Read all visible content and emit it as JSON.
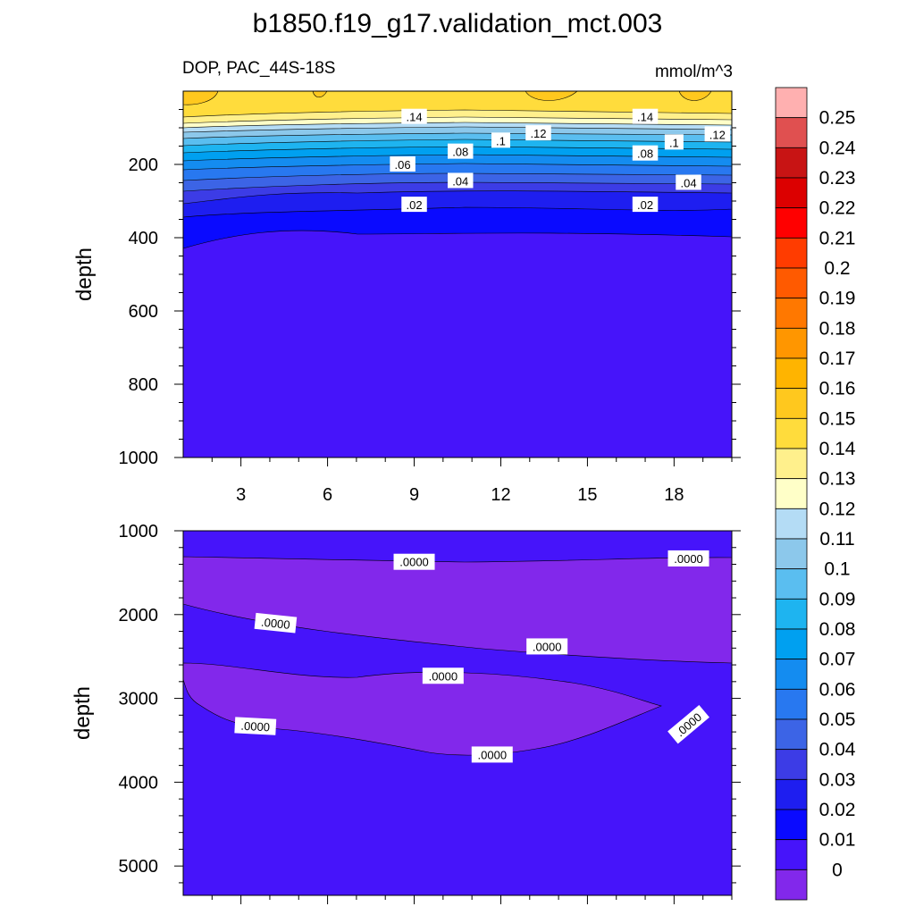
{
  "chart_data": {
    "type": "heatmap",
    "title": "b1850.f19_g17.validation_mct.003",
    "left_string": "DOP, PAC_44S-18S",
    "right_string": "mmol/m^3",
    "panels": [
      {
        "name": "upper",
        "ylabel": "depth",
        "ylim": [
          1000,
          0
        ],
        "xlim": [
          1,
          20
        ],
        "y_ticks": [
          "200",
          "400",
          "600",
          "800",
          "1000"
        ],
        "y_tick_values": [
          200,
          400,
          600,
          800,
          1000
        ],
        "x_ticks": [
          "3",
          "6",
          "9",
          "12",
          "15",
          "18"
        ],
        "x_tick_values": [
          3,
          6,
          9,
          12,
          15,
          18
        ],
        "contour_labels": [
          {
            "text": ".14",
            "x": 9.0,
            "y": 70
          },
          {
            "text": ".14",
            "x": 17.0,
            "y": 70
          },
          {
            "text": ".12",
            "x": 13.3,
            "y": 115
          },
          {
            "text": ".12",
            "x": 19.5,
            "y": 118
          },
          {
            "text": ".1",
            "x": 12.0,
            "y": 135
          },
          {
            "text": ".1",
            "x": 18.0,
            "y": 140
          },
          {
            "text": ".08",
            "x": 10.6,
            "y": 165
          },
          {
            "text": ".08",
            "x": 17.0,
            "y": 170
          },
          {
            "text": ".06",
            "x": 8.6,
            "y": 200
          },
          {
            "text": ".04",
            "x": 10.6,
            "y": 245
          },
          {
            "text": ".04",
            "x": 18.5,
            "y": 250
          },
          {
            "text": ".02",
            "x": 9.0,
            "y": 310
          },
          {
            "text": ".02",
            "x": 17.0,
            "y": 310
          }
        ]
      },
      {
        "name": "lower",
        "ylabel": "depth",
        "ylim": [
          5350,
          1000
        ],
        "xlim": [
          1,
          20
        ],
        "y_ticks": [
          "1000",
          "2000",
          "3000",
          "4000",
          "5000"
        ],
        "y_tick_values": [
          1000,
          2000,
          3000,
          4000,
          5000
        ],
        "contour_labels": [
          {
            "text": ".0000",
            "x": 9.0,
            "y": 1370,
            "angle": 0
          },
          {
            "text": ".0000",
            "x": 18.5,
            "y": 1330,
            "angle": 0
          },
          {
            "text": ".0000",
            "x": 4.2,
            "y": 2100,
            "angle": 6
          },
          {
            "text": ".0000",
            "x": 13.6,
            "y": 2380,
            "angle": 0
          },
          {
            "text": ".0000",
            "x": 10.0,
            "y": 2730,
            "angle": 0
          },
          {
            "text": ".0000",
            "x": 3.5,
            "y": 3330,
            "angle": 3
          },
          {
            "text": ".0000",
            "x": 11.7,
            "y": 3670,
            "angle": 0
          },
          {
            "text": ".0000",
            "x": 18.5,
            "y": 3310,
            "angle": -40
          }
        ]
      }
    ],
    "colorbar": {
      "labels": [
        "0.25",
        "0.24",
        "0.23",
        "0.22",
        "0.21",
        "0.2",
        "0.19",
        "0.18",
        "0.17",
        "0.16",
        "0.15",
        "0.14",
        "0.13",
        "0.12",
        "0.11",
        "0.1",
        "0.09",
        "0.08",
        "0.07",
        "0.06",
        "0.05",
        "0.04",
        "0.03",
        "0.02",
        "0.01",
        "0"
      ],
      "colors": [
        "#FFB0B0",
        "#E05050",
        "#C81414",
        "#DC0000",
        "#FF0000",
        "#FF3C00",
        "#FF5A00",
        "#FF7800",
        "#FF9600",
        "#FFB400",
        "#FFC81E",
        "#FFDC3C",
        "#FFF08C",
        "#FFFFC8",
        "#B4DCF5",
        "#8CC8EB",
        "#5ABEF0",
        "#1EB4F0",
        "#00A0F0",
        "#148CF0",
        "#2878F0",
        "#3C64E6",
        "#3C3CE6",
        "#1E1EF0",
        "#0A0AFF",
        "#4614FA",
        "#8228EB"
      ]
    }
  }
}
